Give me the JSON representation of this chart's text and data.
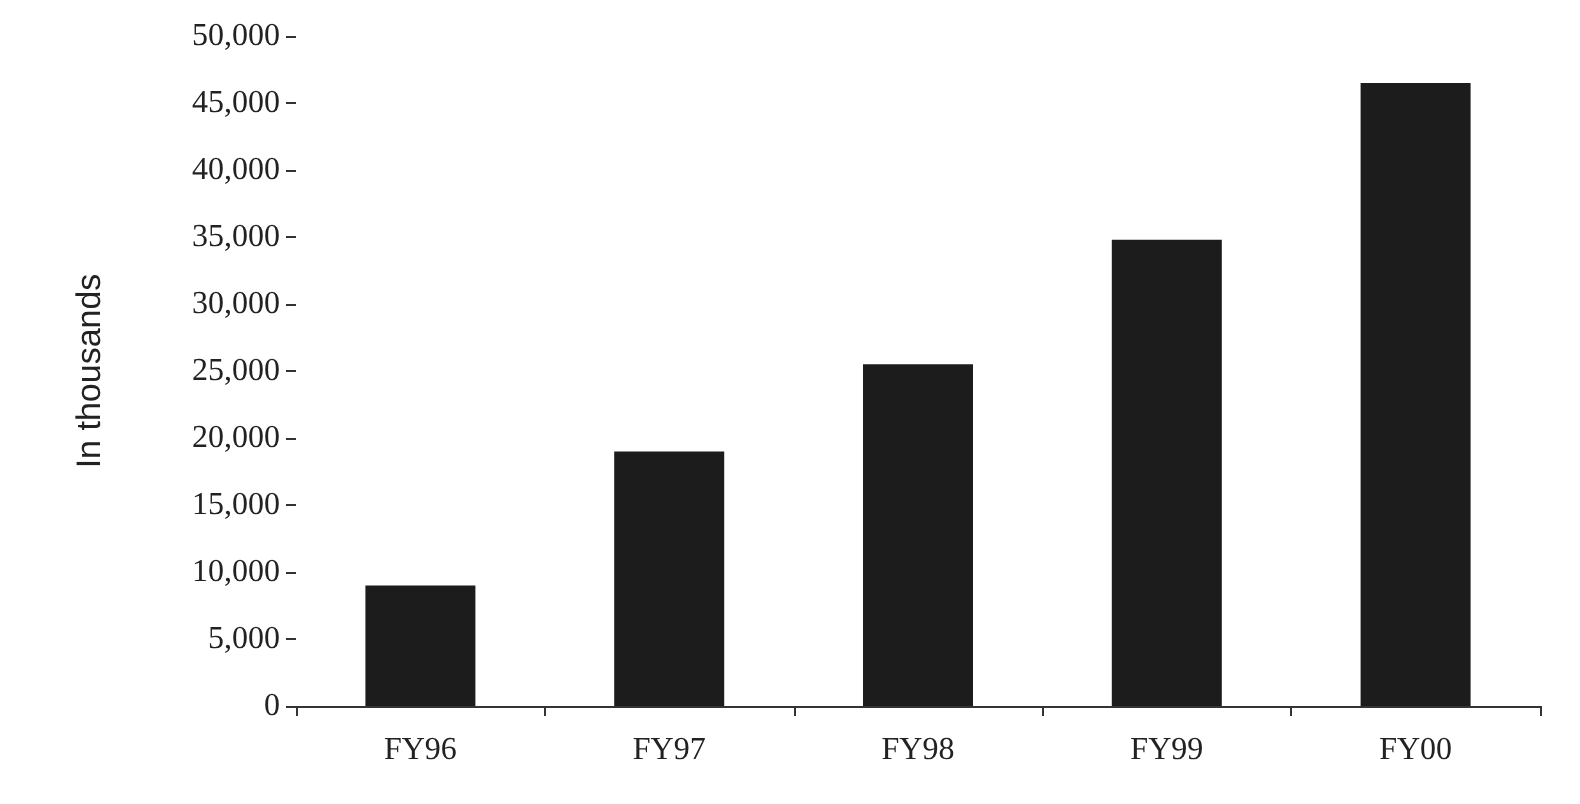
{
  "chart_data": {
    "type": "bar",
    "ylabel": "In thousands",
    "categories": [
      "FY96",
      "FY97",
      "FY98",
      "FY99",
      "FY00"
    ],
    "values": [
      9000,
      19000,
      25500,
      34800,
      46500
    ],
    "color": "#1c1c1c",
    "ylim": [
      0,
      50000
    ],
    "yticks": [
      0,
      {
        "value": 5000,
        "label": "5,000"
      },
      {
        "value": 10000,
        "label": "10,000"
      },
      {
        "value": 15000,
        "label": "15,000"
      },
      {
        "value": 20000,
        "label": "20,000"
      },
      {
        "value": 25000,
        "label": "25,000"
      },
      {
        "value": 30000,
        "label": "30,000"
      },
      {
        "value": 35000,
        "label": "35,000"
      },
      {
        "value": 40000,
        "label": "40,000"
      },
      {
        "value": 45000,
        "label": "45,000"
      },
      {
        "value": 50000,
        "label": "50,000"
      }
    ],
    "grid": false
  }
}
